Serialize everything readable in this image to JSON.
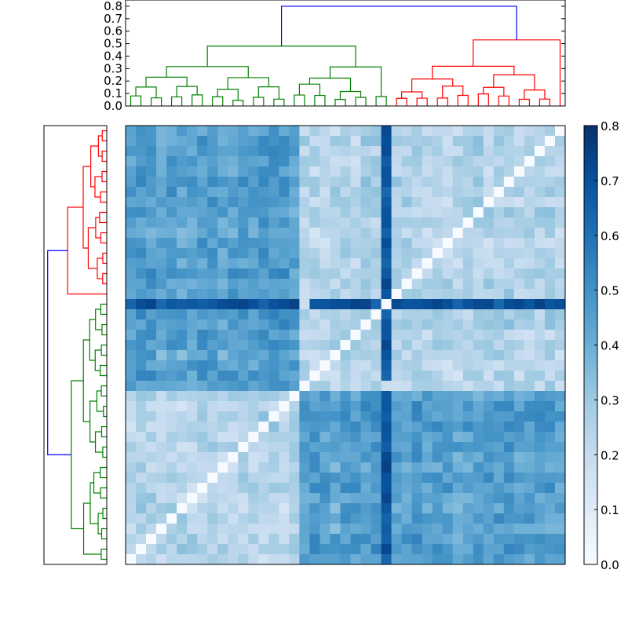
{
  "colors": {
    "cluster_a": "#008000",
    "cluster_b": "#ff0000",
    "root_link": "#0000ff",
    "colormap": "Blues",
    "colormap_low": "#f7fbff",
    "colormap_high": "#08306b"
  },
  "chart_data": [
    {
      "type": "dendrogram",
      "panel": "top",
      "ylim": [
        0.0,
        0.85
      ],
      "yticks": [
        "0.0",
        "0.1",
        "0.2",
        "0.3",
        "0.4",
        "0.5",
        "0.6",
        "0.7",
        "0.8"
      ],
      "leaf_count": 43,
      "clusters": [
        {
          "color": "cluster_a",
          "leaves": 26,
          "merge_height": 0.48
        },
        {
          "color": "cluster_b",
          "leaves": 17,
          "merge_height": 0.53
        }
      ],
      "root_height": 0.8
    },
    {
      "type": "dendrogram",
      "panel": "left",
      "leaf_count": 43,
      "clusters": [
        {
          "color": "cluster_b",
          "leaves": 17
        },
        {
          "color": "cluster_a",
          "leaves": 26
        }
      ]
    },
    {
      "type": "heatmap",
      "rows": 43,
      "cols": 43,
      "diagonal_value": 0.0,
      "value_range": [
        0.0,
        0.8
      ],
      "highlight_row": 17,
      "highlight_col": 25,
      "highlight_value": 0.75
    },
    {
      "type": "colorbar",
      "range": [
        0.0,
        0.8
      ],
      "ticks": [
        "0.0",
        "0.1",
        "0.2",
        "0.3",
        "0.4",
        "0.5",
        "0.6",
        "0.7",
        "0.8"
      ]
    }
  ]
}
